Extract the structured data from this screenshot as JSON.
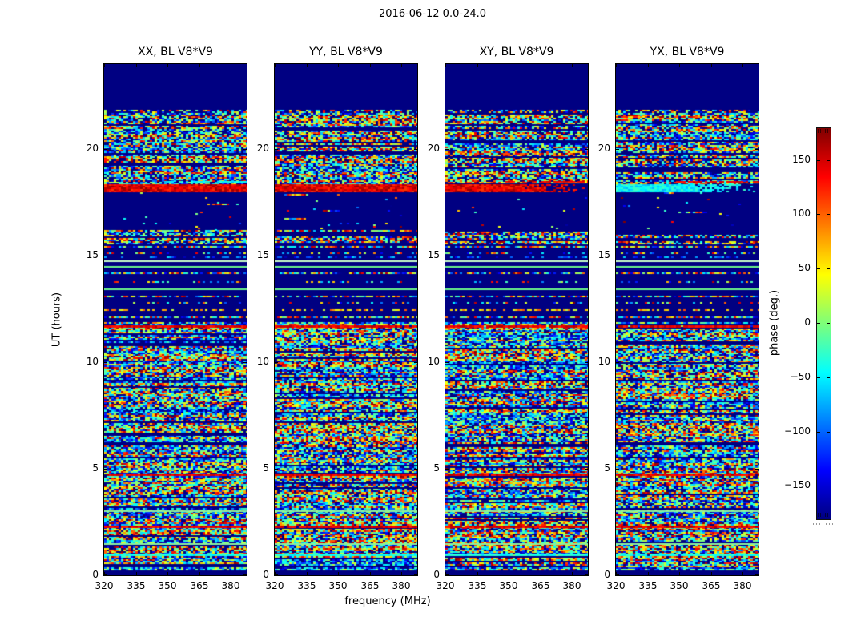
{
  "figure": {
    "title": "2016-06-12 0.0-24.0"
  },
  "chart_data": {
    "type": "heatmap",
    "title": "2016-06-12 0.0-24.0",
    "xlabel": "frequency (MHz)",
    "ylabel": "UT (hours)",
    "x_ticks": [
      320,
      335,
      350,
      365,
      380
    ],
    "y_ticks": [
      0,
      5,
      10,
      15,
      20
    ],
    "x_range_mhz": [
      320,
      387.5
    ],
    "y_range_hours": [
      0,
      24
    ],
    "colormap": "jet",
    "panels": [
      {
        "id": "XX",
        "title": "XX, BL V8*V9",
        "band18_color": "red",
        "band18_fade": false,
        "streak": "cyan",
        "seed": 11
      },
      {
        "id": "YY",
        "title": "YY, BL V8*V9",
        "band18_color": "red",
        "band18_fade": false,
        "streak": "none",
        "seed": 29
      },
      {
        "id": "XY",
        "title": "XY, BL V8*V9",
        "band18_color": "red",
        "band18_fade": true,
        "streak": "red",
        "seed": 47
      },
      {
        "id": "YX",
        "title": "YX, BL V8*V9",
        "band18_color": "cyan",
        "band18_fade": true,
        "streak": "red",
        "seed": 71
      }
    ],
    "colorbar": {
      "label": "phase (deg.)",
      "tick_values": [
        150,
        100,
        50,
        0,
        -50,
        -100,
        -150
      ],
      "tick_labels": [
        "150",
        "100",
        "50",
        "0",
        "−50",
        "−100",
        "−150"
      ],
      "range": [
        -180,
        180
      ]
    },
    "colors": {
      "navy": "#000082",
      "frame": "#000000",
      "pale_line": "#c9ffc9",
      "green_line": "#6cf58c"
    },
    "bands": [
      {
        "ut": [
          21.85,
          24.0
        ],
        "style": "flagged"
      },
      {
        "ut": [
          21.7,
          21.85
        ],
        "style": "dotline"
      },
      {
        "ut": [
          18.35,
          21.7
        ],
        "style": "noise",
        "navy_p": 0.22,
        "navyrow_p": 0.14,
        "striped": false
      },
      {
        "ut": [
          18.0,
          18.35
        ],
        "style": "band18"
      },
      {
        "ut": [
          16.2,
          18.0
        ],
        "style": "flagged",
        "dots": 0.012
      },
      {
        "ut": [
          15.55,
          16.2
        ],
        "style": "noise",
        "navy_p": 0.3,
        "navyrow_p": 0.4,
        "striped": false
      },
      {
        "ut": [
          11.9,
          15.55
        ],
        "style": "sparse",
        "lines": [
          [
            0.02,
            "multi"
          ],
          [
            0.1,
            "sparse"
          ],
          [
            0.16,
            "bluedots"
          ],
          [
            0.21,
            "solidpale"
          ],
          [
            0.28,
            "solidgreen"
          ],
          [
            0.37,
            "multi"
          ],
          [
            0.48,
            "sparse"
          ],
          [
            0.58,
            "solidgreen"
          ],
          [
            0.67,
            "multi"
          ],
          [
            0.76,
            "sparse"
          ],
          [
            0.85,
            "yellowdots"
          ],
          [
            0.95,
            "multi"
          ]
        ]
      },
      {
        "ut": [
          0.22,
          11.9
        ],
        "style": "noise",
        "navy_p": 0.18,
        "navyrow_p": 0.1,
        "striped": true
      },
      {
        "ut": [
          0.0,
          0.22
        ],
        "style": "flagged"
      }
    ],
    "special_rows": [
      {
        "ut": 11.72,
        "kind": "red"
      },
      {
        "ut": 4.78,
        "kind": "red"
      },
      {
        "ut": 2.35,
        "kind": "red"
      },
      {
        "ut": 3.05,
        "kind": "green"
      },
      {
        "ut": 1.5,
        "kind": "green"
      },
      {
        "ut": 1.0,
        "kind": "cyan"
      }
    ]
  }
}
